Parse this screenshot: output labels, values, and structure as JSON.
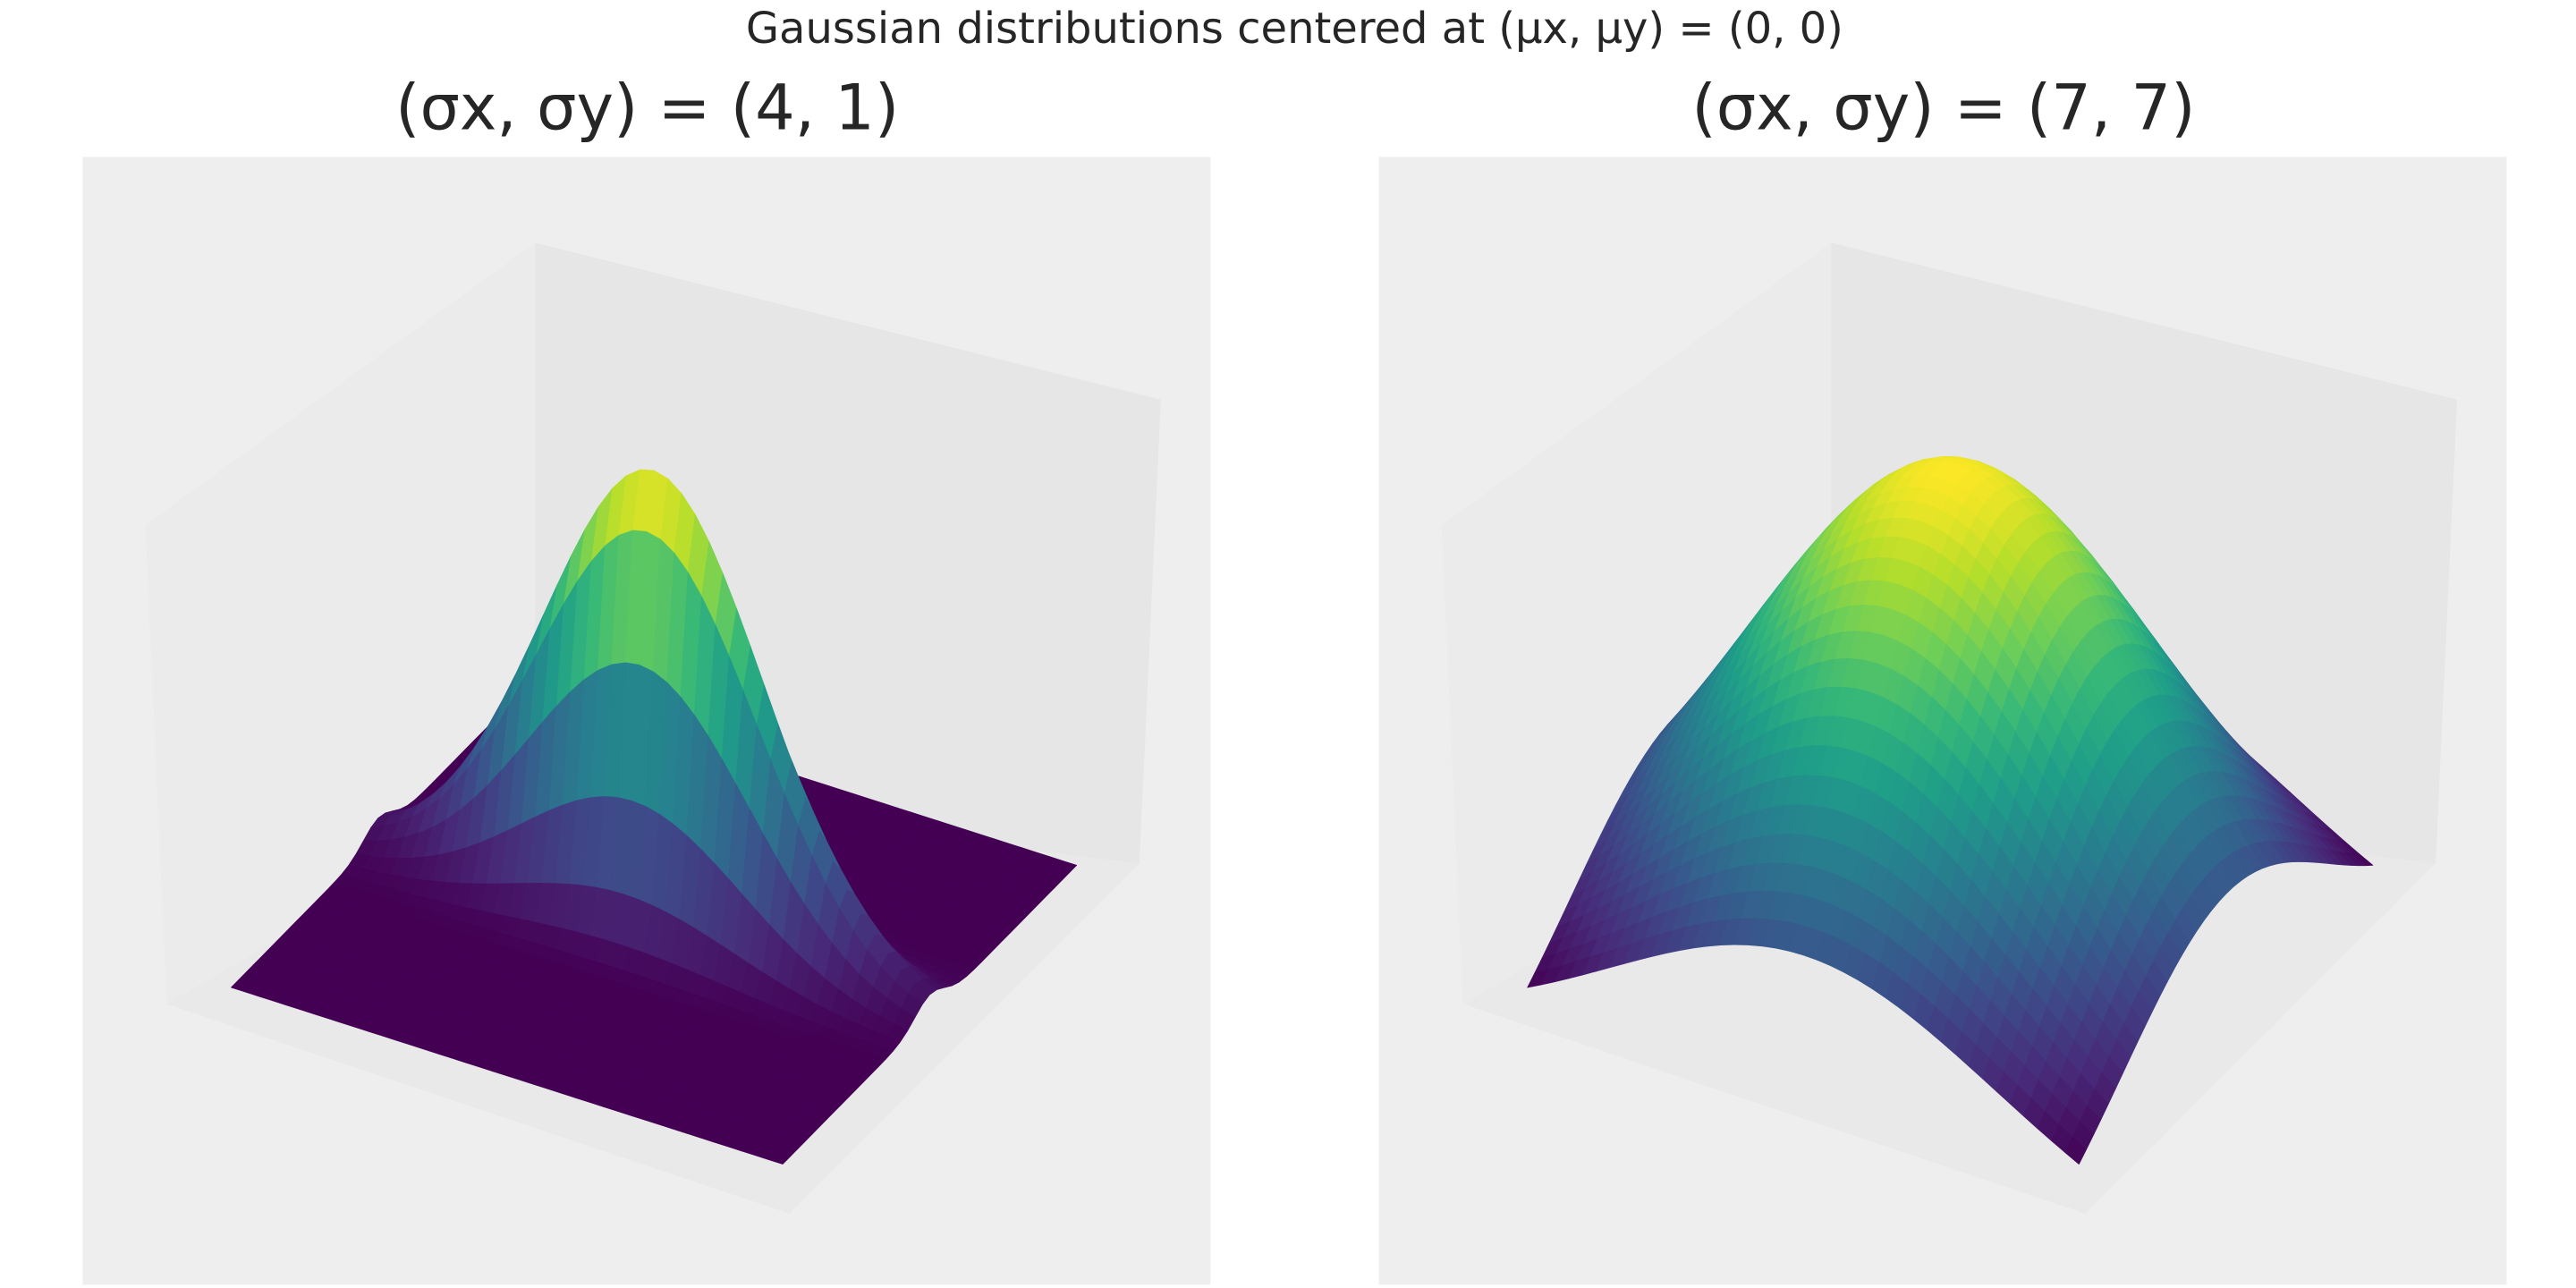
{
  "title": "Gaussian distributions centered at (μx, μy) = (0, 0)",
  "chart_data": [
    {
      "type": "surface",
      "title": "(σx, σy) = (4, 1)",
      "sigma": [
        4,
        1
      ]
    },
    {
      "type": "surface",
      "title": "(σx, σy) = (7, 7)",
      "sigma": [
        7,
        7
      ]
    }
  ]
}
